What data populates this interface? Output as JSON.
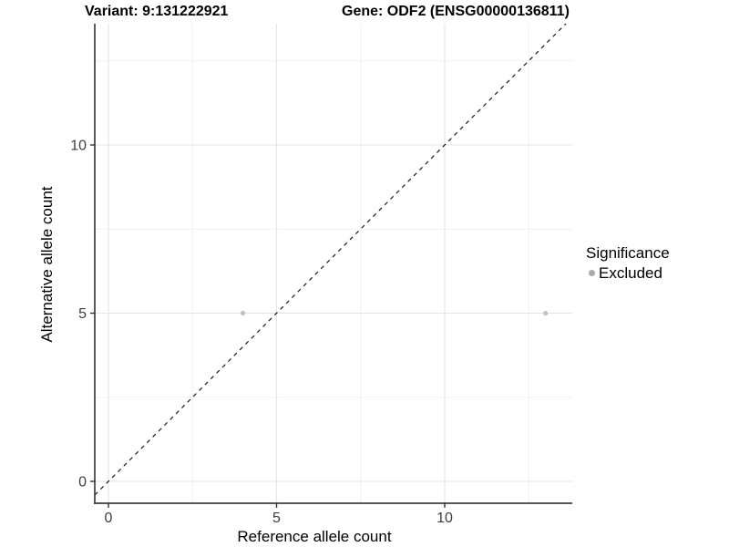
{
  "header": {
    "title_left": "Variant: 9:131222921",
    "title_right": "Gene: ODF2 (ENSG00000136811)"
  },
  "colors": {
    "background": "#ffffff",
    "grid_major": "#e4e4e4",
    "grid_minor": "#ededed",
    "axis_line": "#3f3f3f",
    "tick_mark": "#333333",
    "tick_text": "#3d3d3d",
    "diagonal_line": "#1a1a1a",
    "point": "#c2c2c2",
    "legend_key": "#aaaaaa"
  },
  "chart_data": {
    "type": "scatter",
    "title": "Variant: 9:131222921    Gene: ODF2 (ENSG00000136811)",
    "xlabel": "Reference allele count",
    "ylabel": "Alternative allele count",
    "xlim": [
      -0.4,
      13.7
    ],
    "ylim": [
      -0.65,
      13.6
    ],
    "x_ticks": [
      0,
      5,
      10
    ],
    "y_ticks": [
      0,
      5,
      10
    ],
    "grid_minor_ticks": [
      2.5,
      7.5,
      12.5
    ],
    "grid": true,
    "series": [
      {
        "name": "Excluded",
        "color": "#c2c2c2",
        "points": [
          {
            "x": 4,
            "y": 5
          },
          {
            "x": 13,
            "y": 5
          }
        ]
      }
    ],
    "reference_line": {
      "slope": 1,
      "intercept": 0,
      "style": "dashed",
      "label": "identity"
    },
    "legend": {
      "title": "Significance",
      "position": "right",
      "items": [
        {
          "label": "Excluded",
          "color": "#aaaaaa"
        }
      ]
    }
  }
}
